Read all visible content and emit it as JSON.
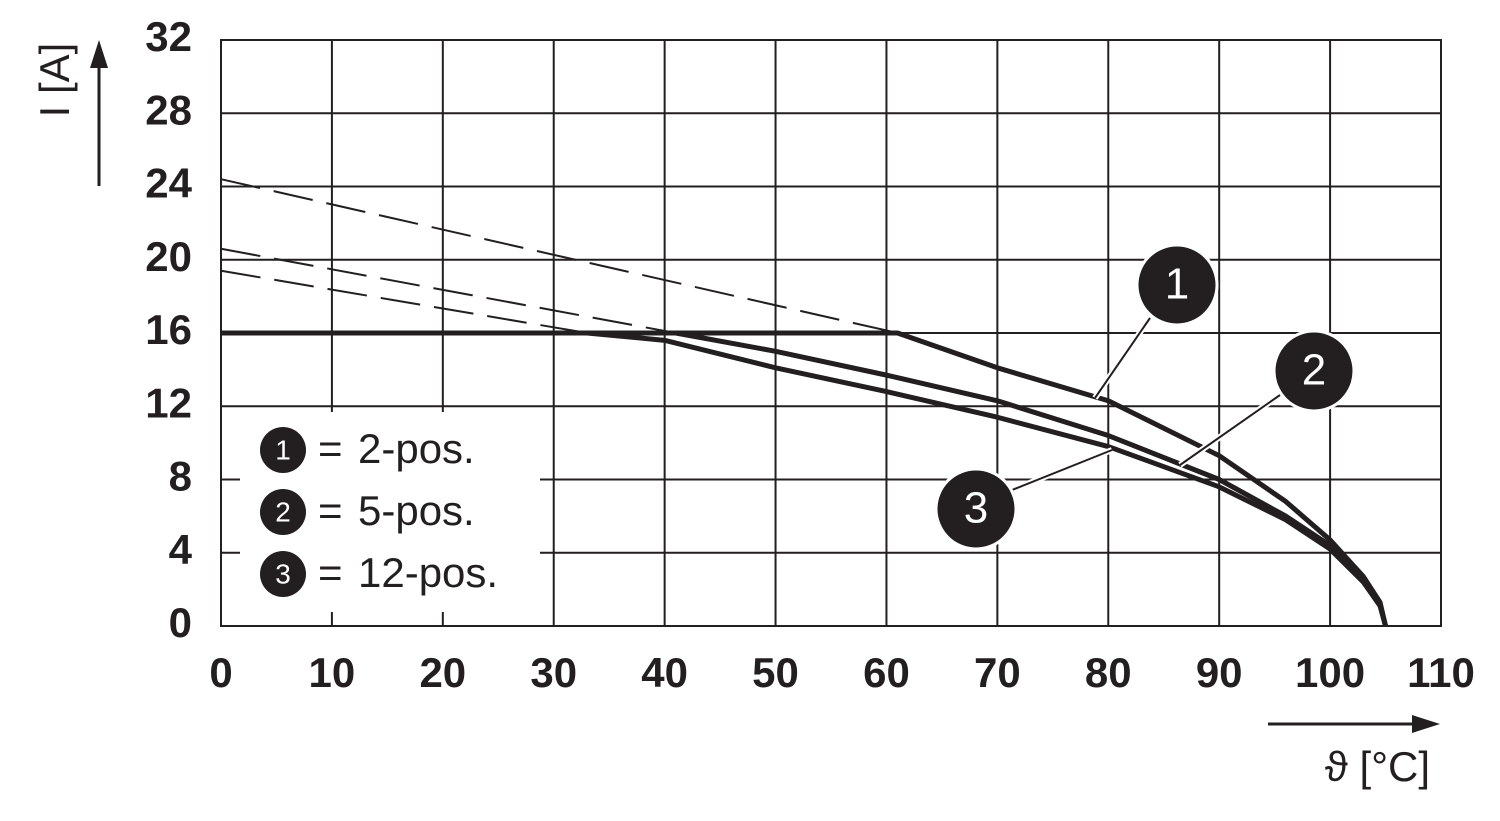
{
  "chart_data": {
    "type": "line",
    "y_label": "I [A]",
    "x_label": "ϑ [°C]",
    "xlim": [
      0,
      110
    ],
    "xticks": [
      0,
      10,
      20,
      30,
      40,
      50,
      60,
      70,
      80,
      90,
      100,
      110
    ],
    "ylim": [
      0,
      32
    ],
    "yticks": [
      0,
      4,
      8,
      12,
      16,
      20,
      24,
      28,
      32
    ],
    "grid": true,
    "legend_separator": "=",
    "series": [
      {
        "name": "2-pos.",
        "marker": "1",
        "color": "#231f20",
        "x": [
          0,
          61,
          70,
          80,
          90,
          96,
          100,
          103,
          104.5,
          105
        ],
        "values": [
          16,
          16,
          14.1,
          12.3,
          9.3,
          6.8,
          4.7,
          2.7,
          1.3,
          0
        ],
        "dashed_x": [
          0,
          61
        ],
        "dashed_values": [
          24.4,
          16
        ]
      },
      {
        "name": "5-pos.",
        "marker": "2",
        "color": "#231f20",
        "x": [
          0,
          41,
          50,
          60,
          70,
          80,
          90,
          96,
          100,
          103,
          104.5,
          105
        ],
        "values": [
          16,
          16,
          15,
          13.7,
          12.3,
          10.4,
          8,
          6,
          4.4,
          2.6,
          1.2,
          0
        ],
        "dashed_x": [
          0,
          41
        ],
        "dashed_values": [
          20.6,
          16
        ]
      },
      {
        "name": "12-pos.",
        "marker": "3",
        "color": "#231f20",
        "x": [
          0,
          33,
          40,
          50,
          60,
          70,
          80,
          90,
          96,
          100,
          103,
          104.5,
          105
        ],
        "values": [
          16,
          16,
          15.6,
          14.1,
          12.8,
          11.4,
          9.8,
          7.6,
          5.8,
          4.2,
          2.4,
          1.1,
          0
        ],
        "dashed_x": [
          0,
          33
        ],
        "dashed_values": [
          19.4,
          16
        ]
      }
    ]
  }
}
